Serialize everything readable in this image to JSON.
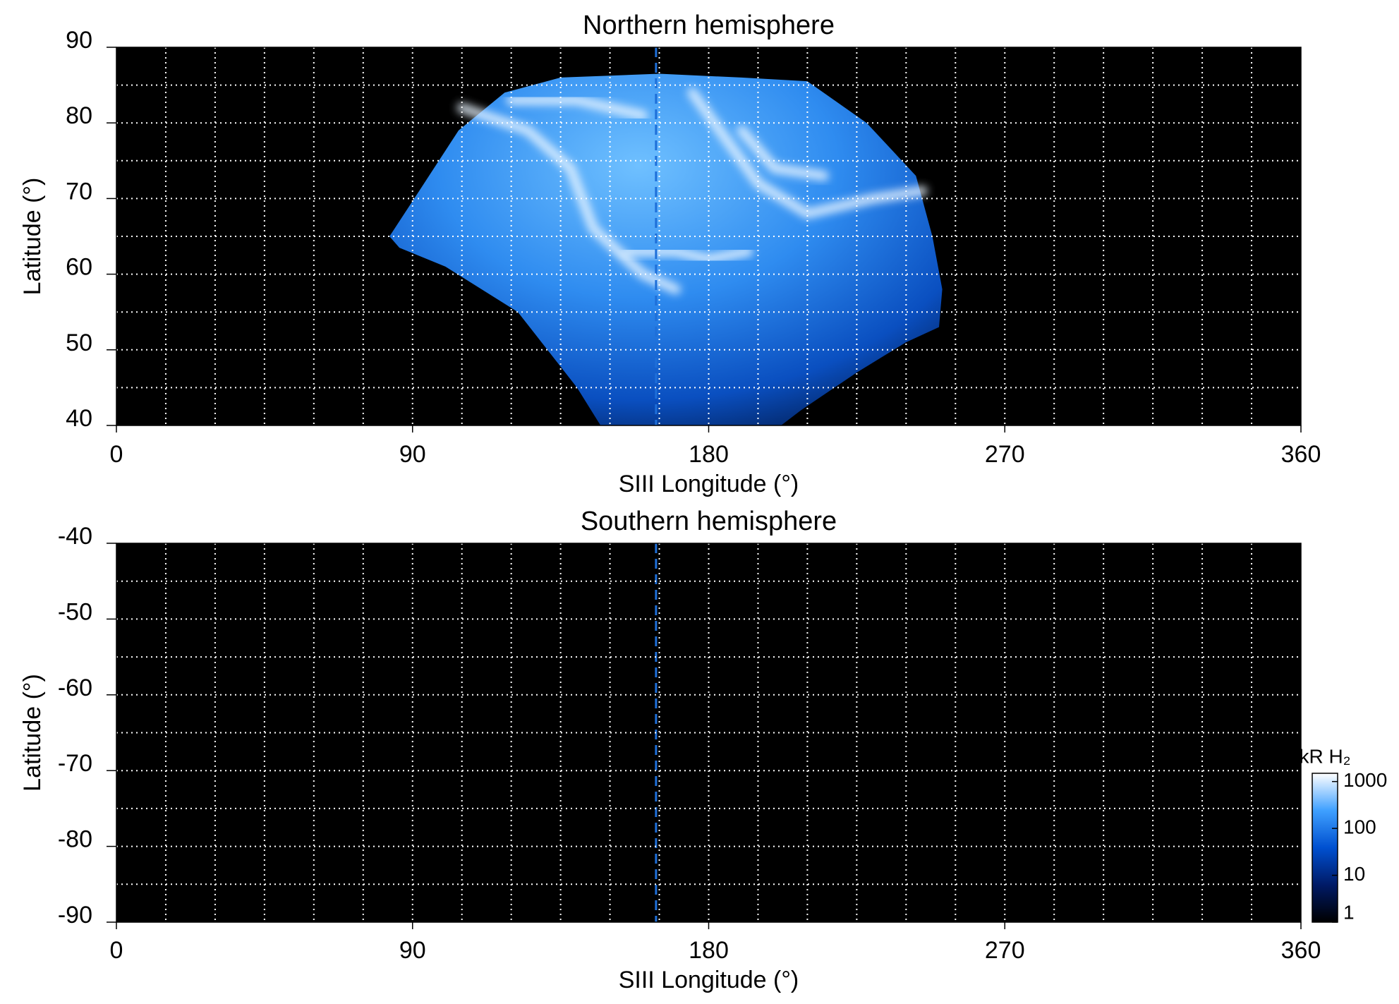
{
  "chart_data": [
    {
      "type": "heatmap",
      "title": "Northern hemisphere",
      "x_label": "SIII Longitude (°)",
      "y_label": "Latitude (°)",
      "xlim": [
        0,
        360
      ],
      "ylim": [
        40,
        90
      ],
      "xticks": [
        0,
        90,
        180,
        270,
        360
      ],
      "yticks": [
        40,
        50,
        60,
        70,
        80,
        90
      ],
      "grid": true,
      "xgrid": [
        15,
        30,
        45,
        60,
        75,
        90,
        105,
        120,
        135,
        150,
        165,
        180,
        195,
        210,
        225,
        240,
        255,
        270,
        285,
        300,
        315,
        330,
        345
      ],
      "ygrid": [
        45,
        50,
        55,
        60,
        65,
        70,
        75,
        80,
        85
      ],
      "grid_color": "#ffffff",
      "background": "#000000",
      "reference_line": {
        "x": 164,
        "color": "#1e6fd9"
      }
    },
    {
      "type": "heatmap",
      "title": "Southern hemisphere",
      "x_label": "SIII Longitude (°)",
      "y_label": "Latitude (°)",
      "xlim": [
        0,
        360
      ],
      "ylim": [
        -90,
        -40
      ],
      "xticks": [
        0,
        90,
        180,
        270,
        360
      ],
      "yticks": [
        -90,
        -80,
        -70,
        -60,
        -50,
        -40
      ],
      "grid": true,
      "xgrid": [
        15,
        30,
        45,
        60,
        75,
        90,
        105,
        120,
        135,
        150,
        165,
        180,
        195,
        210,
        225,
        240,
        255,
        270,
        285,
        300,
        315,
        330,
        345
      ],
      "ygrid": [
        -85,
        -80,
        -75,
        -70,
        -65,
        -60,
        -55,
        -50,
        -45
      ],
      "grid_color": "#ffffff",
      "background": "#000000",
      "reference_line": {
        "x": 164,
        "color": "#1e6fd9"
      }
    }
  ],
  "colorbar": {
    "label": "kR H₂",
    "scale": "log",
    "lim": [
      1,
      1500
    ],
    "ticks": [
      1,
      10,
      100,
      1000
    ],
    "colors": [
      "#000000",
      "#001a66",
      "#0050d0",
      "#3fa0ff",
      "#ffffff"
    ]
  }
}
